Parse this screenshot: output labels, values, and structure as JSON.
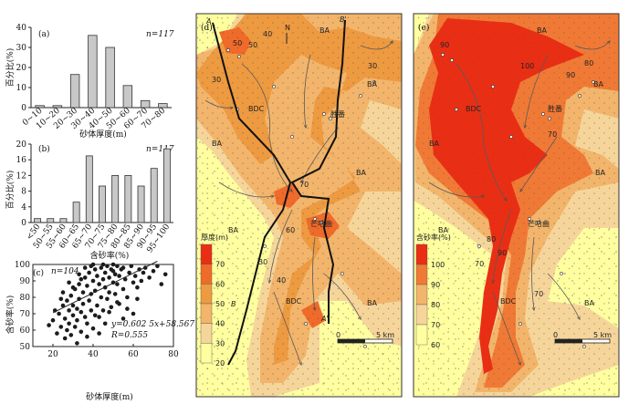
{
  "chart_data": [
    {
      "panel": "(a)",
      "type": "bar",
      "n_label": "n=117",
      "ylabel": "百分比(%)",
      "xlabel": "砂体厚度(m)",
      "ylim": [
        0,
        40
      ],
      "yticks": [
        0,
        10,
        20,
        30,
        40
      ],
      "categories": [
        "0~10",
        "10~20",
        "20~30",
        "30~40",
        "40~50",
        "50~60",
        "60~70",
        "70~80"
      ],
      "values": [
        1,
        1,
        16.5,
        36,
        30,
        11,
        3.5,
        2
      ]
    },
    {
      "panel": "(b)",
      "type": "bar",
      "n_label": "n=117",
      "ylabel": "百分比(%)",
      "xlabel": "含砂率(%)",
      "ylim": [
        0,
        20
      ],
      "yticks": [
        0,
        4,
        8,
        12,
        16,
        20
      ],
      "categories": [
        "<50",
        "50~55",
        "55~60",
        "60~65",
        "65~70",
        "70~75",
        "75~80",
        "80~85",
        "85~90",
        "90~95",
        "95~100"
      ],
      "values": [
        1,
        1,
        1,
        5.2,
        17,
        9.3,
        12,
        12,
        9.3,
        13.8,
        18.8
      ]
    },
    {
      "panel": "(c)",
      "type": "scatter",
      "n_label": "n=104",
      "ylabel": "含砂率(%)",
      "xlabel": "砂体厚度(m)",
      "xlim": [
        10,
        80
      ],
      "ylim": [
        50,
        100
      ],
      "xticks": [
        20,
        40,
        60,
        80
      ],
      "yticks": [
        50,
        60,
        70,
        80,
        90,
        100
      ],
      "equation": "y=0.602 5x+58.567",
      "r_label": "R=0.555",
      "fit": {
        "slope": 0.6025,
        "intercept": 58.567
      },
      "points": [
        [
          18,
          63
        ],
        [
          20,
          66
        ],
        [
          21,
          72
        ],
        [
          22,
          58
        ],
        [
          23,
          70
        ],
        [
          24,
          62
        ],
        [
          25,
          75
        ],
        [
          26,
          67
        ],
        [
          26,
          55
        ],
        [
          27,
          60
        ],
        [
          27,
          78
        ],
        [
          28,
          72
        ],
        [
          28,
          64
        ],
        [
          29,
          81
        ],
        [
          29,
          57
        ],
        [
          30,
          69
        ],
        [
          30,
          75
        ],
        [
          31,
          62
        ],
        [
          31,
          85
        ],
        [
          32,
          73
        ],
        [
          32,
          66
        ],
        [
          33,
          79
        ],
        [
          33,
          88
        ],
        [
          34,
          59
        ],
        [
          34,
          71
        ],
        [
          35,
          83
        ],
        [
          35,
          76
        ],
        [
          36,
          92
        ],
        [
          36,
          68
        ],
        [
          37,
          64
        ],
        [
          37,
          87
        ],
        [
          38,
          95
        ],
        [
          38,
          78
        ],
        [
          39,
          72
        ],
        [
          39,
          82
        ],
        [
          40,
          90
        ],
        [
          40,
          61
        ],
        [
          41,
          97
        ],
        [
          41,
          84
        ],
        [
          42,
          75
        ],
        [
          42,
          93
        ],
        [
          43,
          68
        ],
        [
          43,
          88
        ],
        [
          44,
          98
        ],
        [
          44,
          80
        ],
        [
          45,
          91
        ],
        [
          45,
          72
        ],
        [
          46,
          95
        ],
        [
          46,
          86
        ],
        [
          47,
          79
        ],
        [
          47,
          99
        ],
        [
          48,
          92
        ],
        [
          48,
          83
        ],
        [
          49,
          97
        ],
        [
          49,
          74
        ],
        [
          50,
          89
        ],
        [
          50,
          96
        ],
        [
          51,
          94
        ],
        [
          51,
          82
        ],
        [
          52,
          99
        ],
        [
          52,
          88
        ],
        [
          53,
          76
        ],
        [
          53,
          93
        ],
        [
          54,
          97
        ],
        [
          55,
          85
        ],
        [
          55,
          98
        ],
        [
          56,
          91
        ],
        [
          57,
          80
        ],
        [
          58,
          95
        ],
        [
          59,
          99
        ],
        [
          60,
          89
        ],
        [
          61,
          93
        ],
        [
          62,
          86
        ],
        [
          63,
          97
        ],
        [
          64,
          90
        ],
        [
          65,
          95
        ],
        [
          66,
          98
        ],
        [
          68,
          92
        ],
        [
          70,
          96
        ],
        [
          72,
          99
        ],
        [
          74,
          88
        ],
        [
          76,
          94
        ],
        [
          24,
          79
        ],
        [
          28,
          89
        ],
        [
          33,
          94
        ],
        [
          36,
          98
        ],
        [
          39,
          99
        ],
        [
          43,
          58
        ],
        [
          46,
          64
        ],
        [
          30,
          86
        ],
        [
          34,
          91
        ],
        [
          41,
          69
        ],
        [
          48,
          71
        ],
        [
          52,
          77
        ],
        [
          57,
          73
        ],
        [
          62,
          79
        ],
        [
          37,
          56
        ],
        [
          32,
          52
        ],
        [
          25,
          83
        ],
        [
          45,
          100
        ],
        [
          50,
          100
        ],
        [
          55,
          67
        ],
        [
          60,
          70
        ],
        [
          40,
          100
        ]
      ]
    }
  ],
  "maps": {
    "d": {
      "panel": "(d)",
      "legend_title": "厚度(m)",
      "legend_ticks": [
        "70",
        "60",
        "50",
        "40",
        "30",
        "20"
      ],
      "scale_start": "0",
      "scale_end": "5 km",
      "north": "N",
      "section_a": "A",
      "section_a2": "A'",
      "section_b": "B",
      "section_b2": "B'",
      "areas": [
        "BA",
        "BA",
        "BA",
        "BA",
        "BA",
        "BDC",
        "BDC"
      ],
      "places": [
        "胜番",
        "芒哈曲"
      ],
      "contours": [
        "50",
        "40",
        "30",
        "30",
        "50",
        "60",
        "30",
        "40",
        "70"
      ],
      "colors": {
        "c20": "#ffffa0",
        "c30": "#f6d59a",
        "c40": "#f2b56b",
        "c50": "#ee9a40",
        "c60": "#f06a2a",
        "c70": "#ea2e14"
      }
    },
    "e": {
      "panel": "(e)",
      "legend_title": "含砂率(%)",
      "legend_ticks": [
        "100",
        "90",
        "80",
        "70",
        "60"
      ],
      "scale_start": "0",
      "scale_end": "5 km",
      "areas": [
        "BA",
        "BA",
        "BA",
        "BA",
        "BA",
        "BDC",
        "BDC"
      ],
      "places": [
        "胜番",
        "芒哈曲"
      ],
      "contours": [
        "90",
        "80",
        "70",
        "100",
        "90",
        "70",
        "80",
        "90",
        "70"
      ],
      "colors": {
        "c60": "#ffffa0",
        "c70": "#f6d59a",
        "c80": "#f2b56b",
        "c90": "#f07a35",
        "c100": "#ea2e14"
      }
    }
  }
}
